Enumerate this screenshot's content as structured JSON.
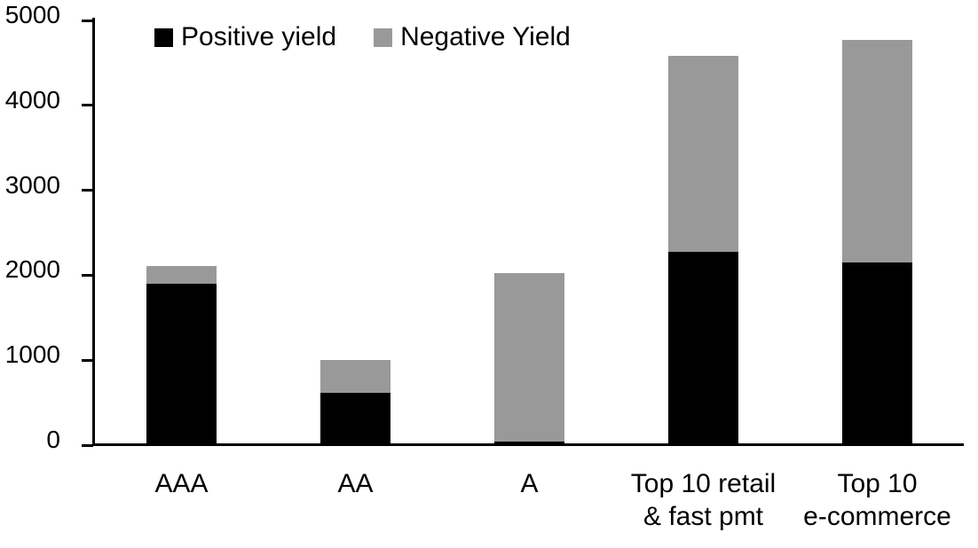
{
  "chart_data": {
    "type": "bar",
    "stacked": true,
    "title": "",
    "xlabel": "",
    "ylabel": "",
    "categories": [
      "AAA",
      "AA",
      "A",
      "Top 10 retail & fast pmt",
      "Top 10 e-commerce"
    ],
    "category_label_lines": [
      [
        "AAA"
      ],
      [
        "AA"
      ],
      [
        "A"
      ],
      [
        "Top 10 retail",
        "& fast pmt"
      ],
      [
        "Top 10",
        "e-commerce"
      ]
    ],
    "series": [
      {
        "name": "Positive yield",
        "color": "#000000",
        "values": [
          1900,
          620,
          40,
          2280,
          2150
        ]
      },
      {
        "name": "Negative Yield",
        "color": "#999999",
        "values": [
          210,
          380,
          1990,
          2300,
          2620
        ]
      }
    ],
    "totals": [
      2110,
      1000,
      2030,
      4580,
      4770
    ],
    "ylim": [
      0,
      5000
    ],
    "ytick_interval": 1000,
    "ytick_labels": [
      "0",
      "1000",
      "2000",
      "3000",
      "4000",
      "5000"
    ],
    "grid": false,
    "legend_position": "top-inside"
  },
  "legend": {
    "items": [
      {
        "label": "Positive yield",
        "color": "#000000"
      },
      {
        "label": "Negative Yield",
        "color": "#999999"
      }
    ]
  },
  "colors": {
    "background": "#ffffff",
    "axis": "#000000",
    "positive_yield": "#000000",
    "negative_yield": "#999999"
  }
}
